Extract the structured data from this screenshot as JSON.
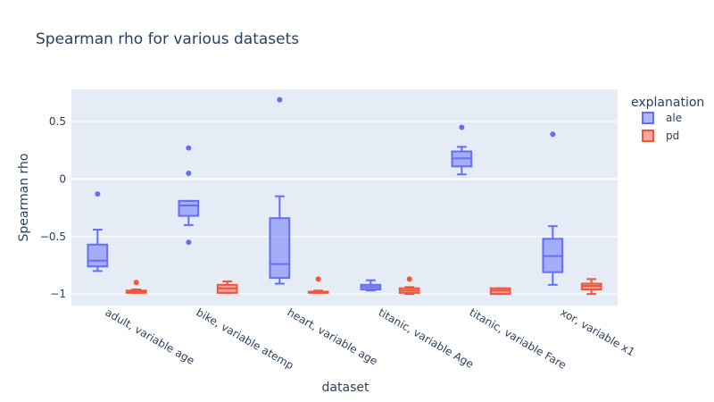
{
  "chart_data": {
    "type": "box",
    "title": "Spearman rho for various datasets",
    "xlabel": "dataset",
    "ylabel": "Spearman rho",
    "ylim": [
      -1.1,
      0.78
    ],
    "yticks": [
      0.5,
      0,
      -0.5,
      -1
    ],
    "ytick_labels": [
      "0.5",
      "0",
      "−0.5",
      "−1"
    ],
    "categories": [
      "adult, variable age",
      "bike, variable atemp",
      "heart, variable age",
      "titanic, variable Age",
      "titanic, variable Fare",
      "xor, variable x1"
    ],
    "grid": true,
    "legend": {
      "title": "explanation",
      "placement": "top-right"
    },
    "series": [
      {
        "name": "ale",
        "color": "#636efa",
        "boxes": [
          {
            "category": "adult, variable age",
            "min": -0.8,
            "q1": -0.76,
            "median": -0.71,
            "q3": -0.57,
            "max": -0.44,
            "outliers": [
              -0.13
            ]
          },
          {
            "category": "bike, variable atemp",
            "min": -0.4,
            "q1": -0.32,
            "median": -0.23,
            "q3": -0.19,
            "max": -0.19,
            "outliers": [
              0.27,
              0.05,
              -0.55
            ]
          },
          {
            "category": "heart, variable age",
            "min": -0.91,
            "q1": -0.86,
            "median": -0.74,
            "q3": -0.34,
            "max": -0.15,
            "outliers": [
              0.69
            ]
          },
          {
            "category": "titanic, variable Age",
            "min": -0.97,
            "q1": -0.96,
            "median": -0.94,
            "q3": -0.92,
            "max": -0.88,
            "outliers": []
          },
          {
            "category": "titanic, variable Fare",
            "min": 0.04,
            "q1": 0.11,
            "median": 0.18,
            "q3": 0.24,
            "max": 0.28,
            "outliers": [
              0.45
            ]
          },
          {
            "category": "xor, variable x1",
            "min": -0.92,
            "q1": -0.81,
            "median": -0.67,
            "q3": -0.52,
            "max": -0.41,
            "outliers": [
              0.39
            ]
          }
        ]
      },
      {
        "name": "pd",
        "color": "#ef553b",
        "boxes": [
          {
            "category": "adult, variable age",
            "min": -0.99,
            "q1": -0.99,
            "median": -0.98,
            "q3": -0.97,
            "max": -0.96,
            "outliers": [
              -0.9
            ]
          },
          {
            "category": "bike, variable atemp",
            "min": -0.99,
            "q1": -0.99,
            "median": -0.95,
            "q3": -0.92,
            "max": -0.89,
            "outliers": []
          },
          {
            "category": "heart, variable age",
            "min": -0.99,
            "q1": -0.99,
            "median": -0.98,
            "q3": -0.98,
            "max": -0.97,
            "outliers": [
              -0.87
            ]
          },
          {
            "category": "titanic, variable Age",
            "min": -1.0,
            "q1": -0.99,
            "median": -0.97,
            "q3": -0.95,
            "max": -0.94,
            "outliers": [
              -0.87
            ]
          },
          {
            "category": "titanic, variable Fare",
            "min": -1.0,
            "q1": -1.0,
            "median": -0.97,
            "q3": -0.95,
            "max": -0.95,
            "outliers": []
          },
          {
            "category": "xor, variable x1",
            "min": -1.0,
            "q1": -0.96,
            "median": -0.93,
            "q3": -0.91,
            "max": -0.87,
            "outliers": []
          }
        ]
      }
    ]
  }
}
